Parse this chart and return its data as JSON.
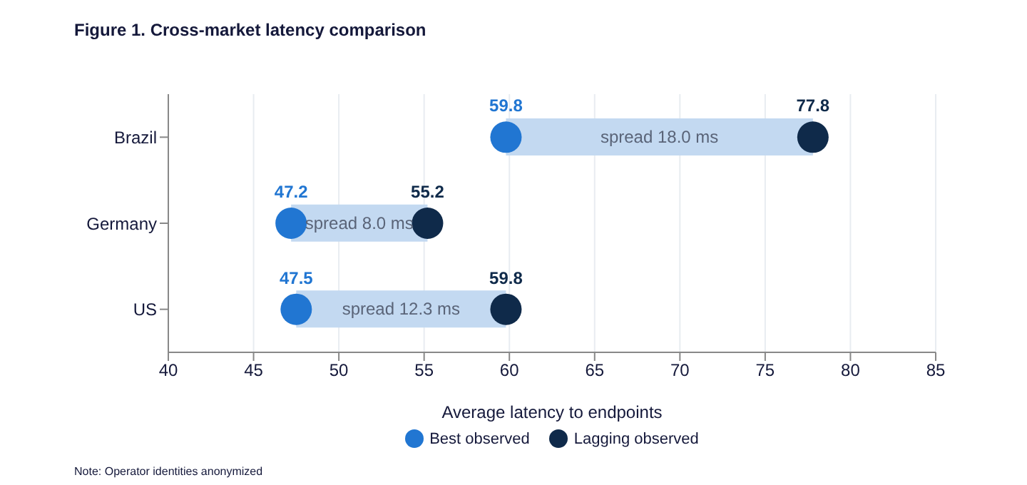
{
  "chart_data": {
    "type": "scatter",
    "title": "Figure 1. Cross-market latency comparison",
    "xlabel": "Average latency to endpoints",
    "orientation": "horizontal",
    "categories": [
      "Brazil",
      "Germany",
      "US"
    ],
    "series": [
      {
        "type": "bar",
        "color": "#c3d9f1",
        "base": [
          59.8,
          47.2,
          47.5
        ],
        "values": [
          18.0,
          8.0,
          12.3
        ],
        "value_labels": [
          "spread 18.0 ms",
          "spread 8.0 ms",
          "spread 12.3 ms"
        ]
      },
      {
        "name": "Best observed",
        "color": "#2176d2",
        "values": [
          59.8,
          47.2,
          47.5
        ]
      },
      {
        "name": "Lagging observed",
        "color": "#0f2a4a",
        "values": [
          77.8,
          55.2,
          59.8
        ]
      }
    ],
    "data_labels": true,
    "xlim": [
      40,
      85
    ],
    "xticks": [
      40,
      45,
      50,
      55,
      60,
      65,
      70,
      75,
      80,
      85
    ],
    "grid": "x",
    "legend": "bottom",
    "marker": "circle",
    "annotations": [
      "Note: Operator identities anonymized"
    ]
  }
}
